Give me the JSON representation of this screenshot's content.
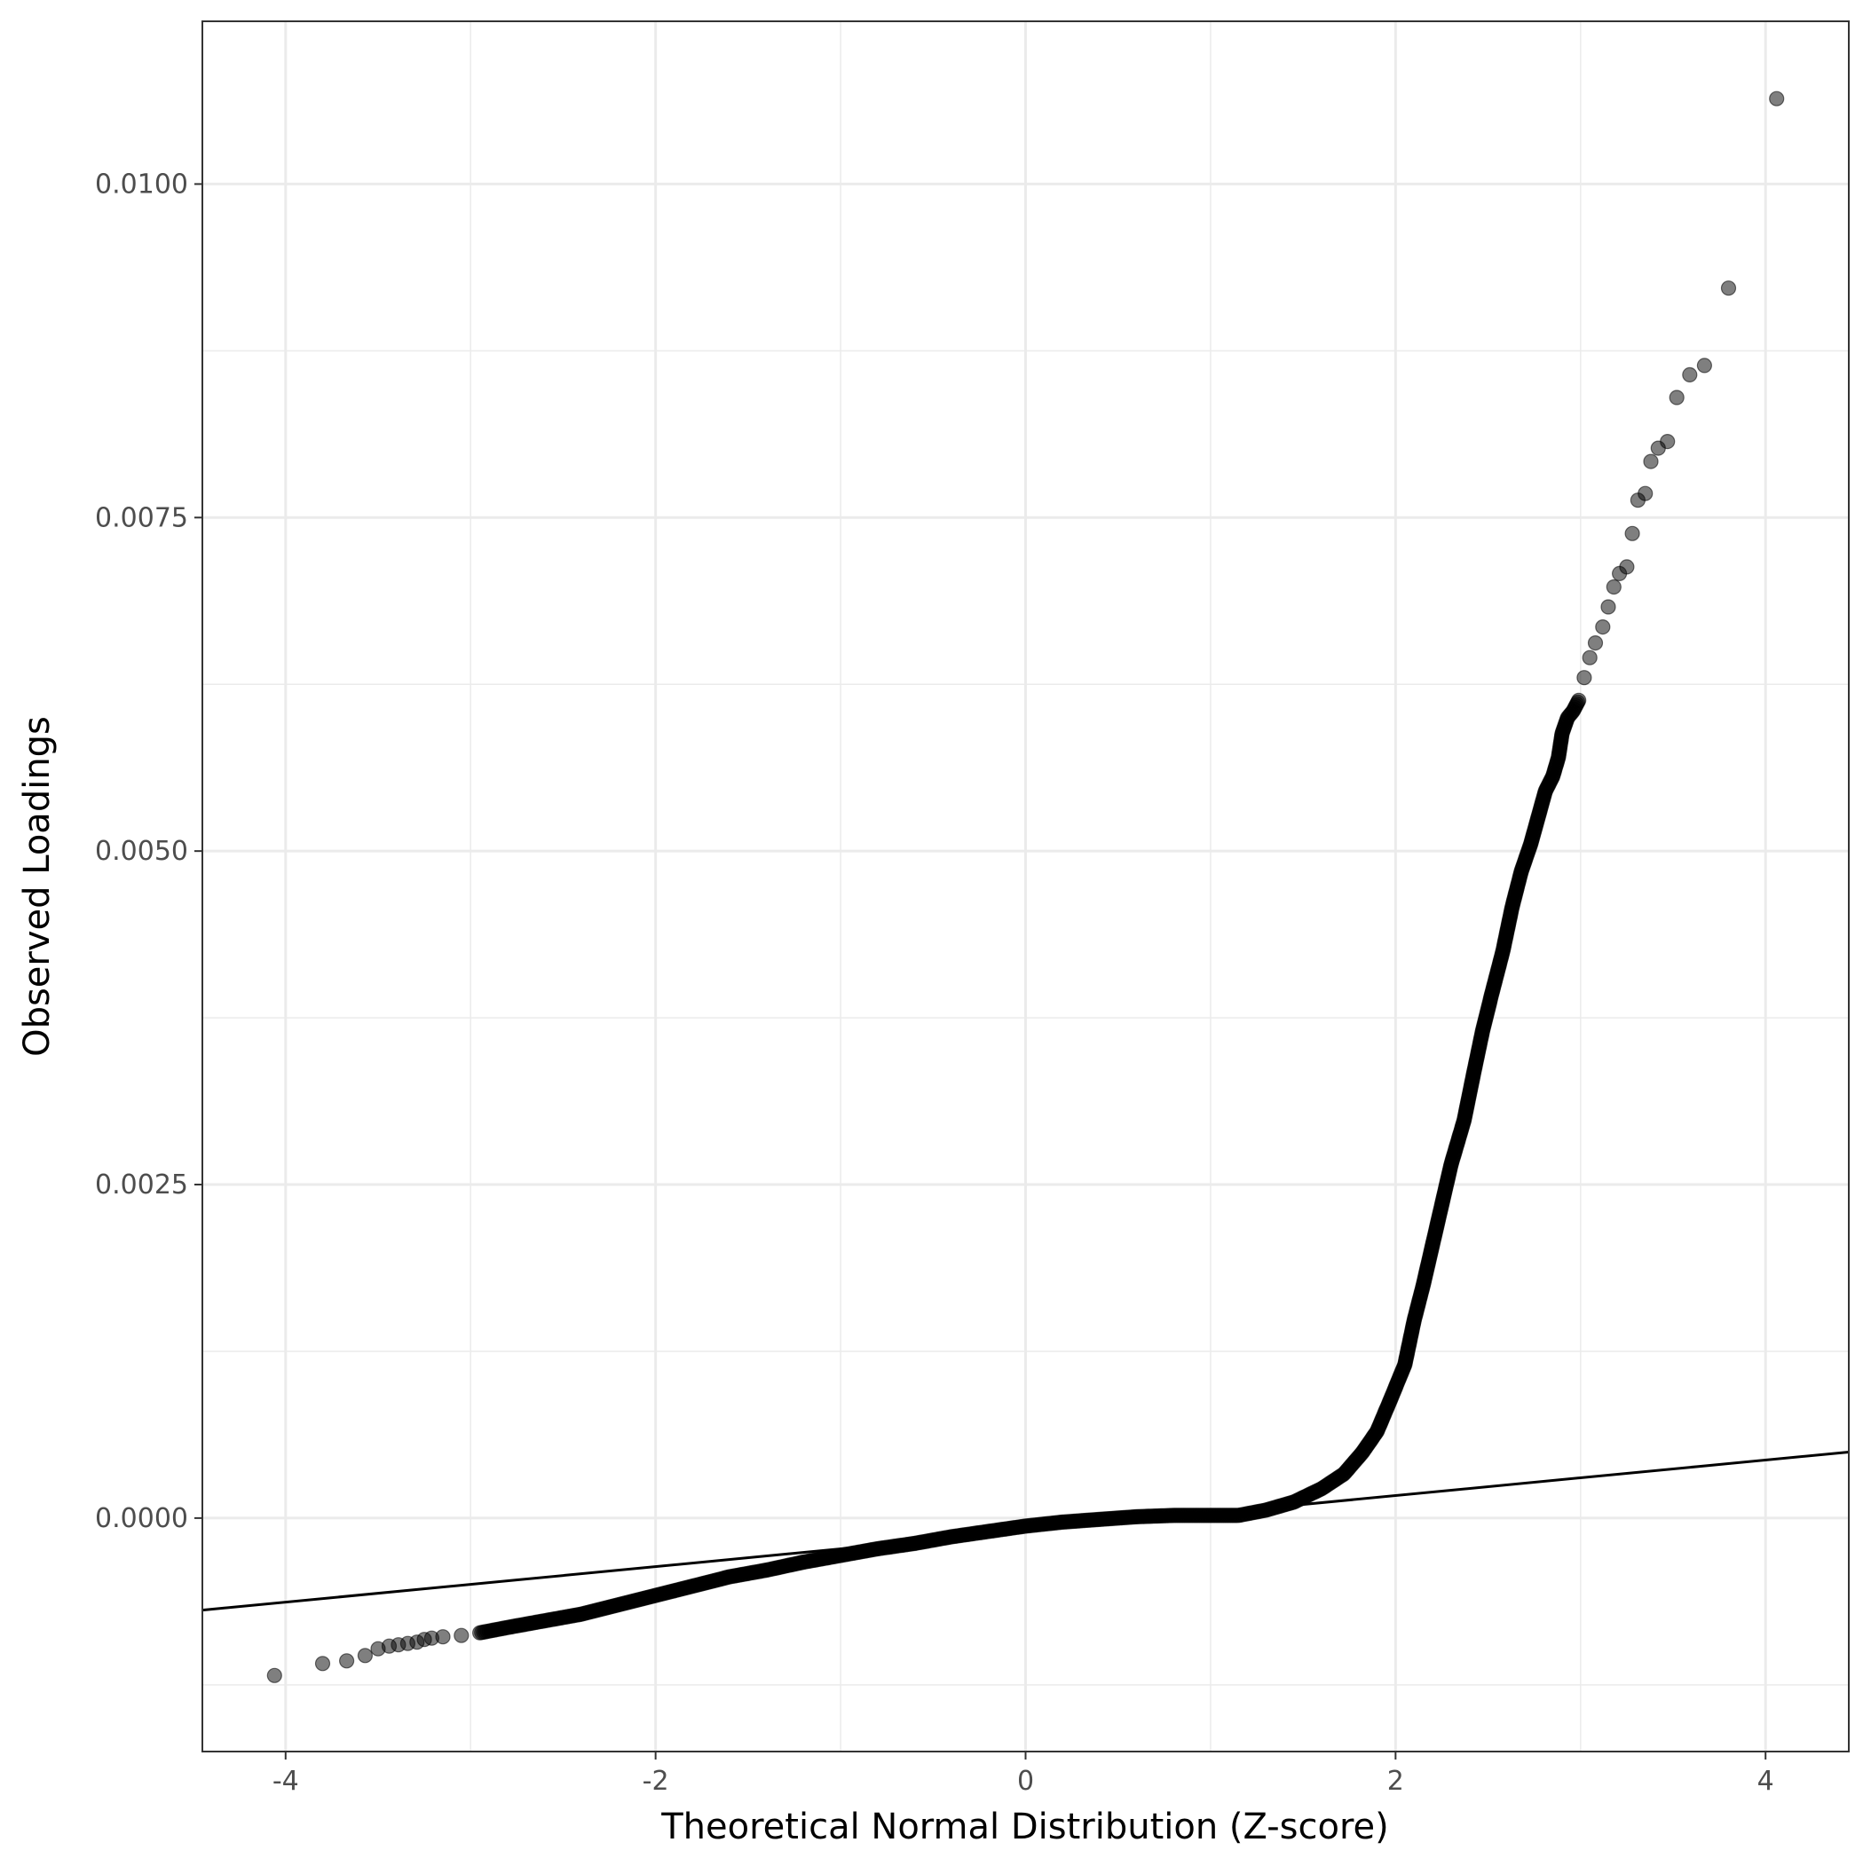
{
  "chart_data": {
    "type": "scatter",
    "title": "",
    "xlabel": "Theoretical Normal Distribution (Z-score)",
    "ylabel": "Observed Loadings",
    "xlim": [
      -4.45,
      4.45
    ],
    "ylim": [
      -0.00175,
      0.01122
    ],
    "x_ticks": [
      -4,
      -2,
      0,
      2,
      4
    ],
    "x_tick_labels": [
      "-4",
      "-2",
      "0",
      "2",
      "4"
    ],
    "y_ticks": [
      0.0,
      0.0025,
      0.005,
      0.0075,
      0.01
    ],
    "y_tick_labels": [
      "0.0000",
      "0.0025",
      "0.0050",
      "0.0075",
      "0.0100"
    ],
    "grid": true,
    "point_color": "#000000",
    "point_opacity": 0.5,
    "reference_line": {
      "type": "qq-line",
      "points": [
        [
          -4.45,
          -0.00069
        ],
        [
          4.45,
          0.000495
        ]
      ]
    },
    "series": [
      {
        "points": [
          [
            -4.06,
            -0.00118
          ],
          [
            -3.8,
            -0.00109
          ],
          [
            -3.67,
            -0.00107
          ],
          [
            -3.57,
            -0.00103
          ],
          [
            -3.5,
            -0.00098
          ],
          [
            -3.44,
            -0.00096
          ],
          [
            -3.39,
            -0.00095
          ],
          [
            -3.34,
            -0.00094
          ],
          [
            -3.29,
            -0.00093
          ],
          [
            -3.25,
            -0.00091
          ],
          [
            -3.21,
            -0.0009
          ],
          [
            -3.15,
            -0.00089
          ],
          [
            -3.05,
            -0.00088
          ],
          [
            -2.95,
            -0.00086
          ],
          [
            -2.8,
            -0.00082
          ],
          [
            -2.6,
            -0.00077
          ],
          [
            -2.4,
            -0.00072
          ],
          [
            -2.2,
            -0.00065
          ],
          [
            -2.0,
            -0.00058
          ],
          [
            -1.8,
            -0.00051
          ],
          [
            -1.6,
            -0.00044
          ],
          [
            -1.4,
            -0.00039
          ],
          [
            -1.2,
            -0.00033
          ],
          [
            -1.0,
            -0.00028
          ],
          [
            -0.8,
            -0.00023
          ],
          [
            -0.6,
            -0.00019
          ],
          [
            -0.4,
            -0.00014
          ],
          [
            -0.2,
            -0.0001
          ],
          [
            0.0,
            -6e-05
          ],
          [
            0.2,
            -3e-05
          ],
          [
            0.4,
            -1e-05
          ],
          [
            0.6,
            1e-05
          ],
          [
            0.8,
            2e-05
          ],
          [
            1.0,
            2e-05
          ],
          [
            1.15,
            2e-05
          ],
          [
            1.3,
            6e-05
          ],
          [
            1.45,
            0.00012
          ],
          [
            1.6,
            0.00022
          ],
          [
            1.72,
            0.00033
          ],
          [
            1.82,
            0.00049
          ],
          [
            1.9,
            0.00065
          ],
          [
            1.97,
            0.00088
          ],
          [
            2.05,
            0.00115
          ],
          [
            2.1,
            0.00148
          ],
          [
            2.15,
            0.00175
          ],
          [
            2.2,
            0.00205
          ],
          [
            2.25,
            0.00235
          ],
          [
            2.3,
            0.00265
          ],
          [
            2.37,
            0.00298
          ],
          [
            2.42,
            0.00332
          ],
          [
            2.47,
            0.00365
          ],
          [
            2.52,
            0.00393
          ],
          [
            2.58,
            0.00425
          ],
          [
            2.63,
            0.00458
          ],
          [
            2.68,
            0.00485
          ],
          [
            2.73,
            0.00505
          ],
          [
            2.77,
            0.00525
          ],
          [
            2.81,
            0.00545
          ],
          [
            2.85,
            0.00556
          ],
          [
            2.88,
            0.0057
          ],
          [
            2.9,
            0.00588
          ],
          [
            2.93,
            0.006
          ],
          [
            2.96,
            0.00605
          ],
          [
            2.99,
            0.00613
          ],
          [
            3.02,
            0.0063
          ],
          [
            3.05,
            0.00645
          ],
          [
            3.08,
            0.00656
          ],
          [
            3.12,
            0.00668
          ],
          [
            3.15,
            0.00683
          ],
          [
            3.18,
            0.00698
          ],
          [
            3.21,
            0.00708
          ],
          [
            3.25,
            0.00713
          ],
          [
            3.28,
            0.00738
          ],
          [
            3.31,
            0.00763
          ],
          [
            3.35,
            0.00768
          ],
          [
            3.38,
            0.00792
          ],
          [
            3.42,
            0.00802
          ],
          [
            3.47,
            0.00807
          ],
          [
            3.52,
            0.0084
          ],
          [
            3.59,
            0.00857
          ],
          [
            3.67,
            0.00864
          ],
          [
            3.8,
            0.00922
          ],
          [
            4.06,
            0.01064
          ]
        ]
      }
    ]
  }
}
